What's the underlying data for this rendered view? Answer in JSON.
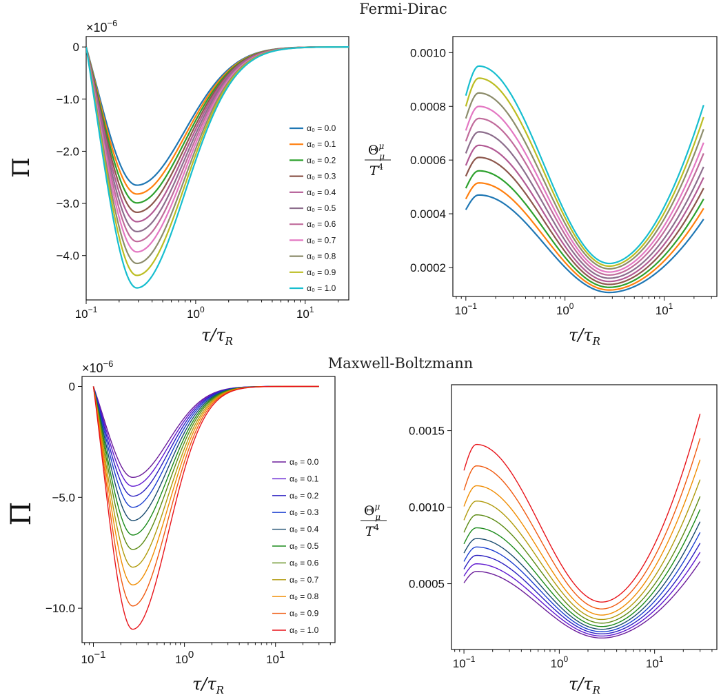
{
  "panels_titles": {
    "top": "Fermi-Dirac",
    "bottom": "Maxwell-Boltzmann"
  },
  "legend_labels": [
    "α₀ = 0.0",
    "α₀ = 0.1",
    "α₀ = 0.2",
    "α₀ = 0.3",
    "α₀ = 0.4",
    "α₀ = 0.5",
    "α₀ = 0.6",
    "α₀ = 0.7",
    "α₀ = 0.8",
    "α₀ = 0.9",
    "α₀ = 1.0"
  ],
  "xlabel": "τ/τ_R",
  "xlabel_main": "τ/τ",
  "xlabel_sub": "R",
  "multiplier_base": "×10",
  "multiplier_exp": "−6",
  "pi_label": "Π",
  "theta_num": "Θ",
  "theta_sup": "μ",
  "theta_sub": "μ",
  "theta_den": "T",
  "theta_den_sup": "4",
  "x_tick_base": "10",
  "colors": {
    "tab10": [
      "#1f77b4",
      "#ff7f0e",
      "#2ca02c",
      "#8c564b",
      "#b25a94",
      "#8c6d8c",
      "#c06b9b",
      "#e377c2",
      "#8c8c6b",
      "#bcbd22",
      "#17becf"
    ],
    "rainbow": [
      "#6a1b9a",
      "#5e17d0",
      "#2a1ec0",
      "#1a3ed0",
      "#184a6e",
      "#1a8a1a",
      "#5b8a12",
      "#b09a0a",
      "#f08c00",
      "#f05a10",
      "#e8141a"
    ]
  },
  "chart_data": [
    {
      "id": "fd-pi",
      "type": "line",
      "section": "Fermi-Dirac",
      "xscale": "log",
      "xlim": [
        0.1,
        25
      ],
      "ylim": [
        -4.85,
        0.2
      ],
      "x_ticks": [
        {
          "value": 0.1,
          "exp": "−1"
        },
        {
          "value": 1,
          "exp": "0"
        },
        {
          "value": 10,
          "exp": "1"
        }
      ],
      "y_ticks": [
        {
          "value": 0,
          "label": "0"
        },
        {
          "value": -1,
          "label": "−1.0"
        },
        {
          "value": -2,
          "label": "−2.0"
        },
        {
          "value": -3,
          "label": "−3.0"
        },
        {
          "value": -4,
          "label": "−4.0"
        }
      ],
      "multiplier": "×10⁻⁶",
      "ylabel": "Π",
      "xlabel": "τ/τ_R",
      "legend": "right-middle",
      "curve": {
        "x_start": 0.1,
        "x_min": 0.29,
        "w_left": 0.52,
        "w_right": 0.62,
        "x_end": 25
      },
      "series": [
        {
          "name": "α₀ = 0.0",
          "min_x": 0.29,
          "min_y": -2.65
        },
        {
          "name": "α₀ = 0.1",
          "min_x": 0.29,
          "min_y": -2.82
        },
        {
          "name": "α₀ = 0.2",
          "min_x": 0.29,
          "min_y": -2.99
        },
        {
          "name": "α₀ = 0.3",
          "min_x": 0.29,
          "min_y": -3.17
        },
        {
          "name": "α₀ = 0.4",
          "min_x": 0.29,
          "min_y": -3.35
        },
        {
          "name": "α₀ = 0.5",
          "min_x": 0.29,
          "min_y": -3.54
        },
        {
          "name": "α₀ = 0.6",
          "min_x": 0.29,
          "min_y": -3.73
        },
        {
          "name": "α₀ = 0.7",
          "min_x": 0.29,
          "min_y": -3.93
        },
        {
          "name": "α₀ = 0.8",
          "min_x": 0.29,
          "min_y": -4.15
        },
        {
          "name": "α₀ = 0.9",
          "min_x": 0.29,
          "min_y": -4.38
        },
        {
          "name": "α₀ = 1.0",
          "min_x": 0.29,
          "min_y": -4.62
        }
      ]
    },
    {
      "id": "fd-theta",
      "type": "line",
      "section": "Fermi-Dirac",
      "xscale": "log",
      "xlim": [
        0.074,
        34
      ],
      "ylim": [
        9.2e-05,
        0.00106
      ],
      "x_ticks": [
        {
          "value": 0.1,
          "exp": "−1"
        },
        {
          "value": 1,
          "exp": "0"
        },
        {
          "value": 10,
          "exp": "1"
        }
      ],
      "y_ticks": [
        {
          "value": 0.0002,
          "label": "0.0002"
        },
        {
          "value": 0.0004,
          "label": "0.0004"
        },
        {
          "value": 0.0006,
          "label": "0.0006"
        },
        {
          "value": 0.0008,
          "label": "0.0008"
        },
        {
          "value": 0.001,
          "label": "0.0010"
        }
      ],
      "ylabel": "Θ^μ_μ / T^4",
      "xlabel": "τ/τ_R",
      "x_range": [
        0.1,
        25
      ],
      "series": [
        {
          "name": "α₀ = 0.0",
          "start": 0.000415,
          "peak": 0.00047,
          "min": 0.000107,
          "end": 0.00038
        },
        {
          "name": "α₀ = 0.1",
          "start": 0.000455,
          "peak": 0.000515,
          "min": 0.000116,
          "end": 0.00042
        },
        {
          "name": "α₀ = 0.2",
          "start": 0.000495,
          "peak": 0.00056,
          "min": 0.000126,
          "end": 0.000455
        },
        {
          "name": "α₀ = 0.3",
          "start": 0.00054,
          "peak": 0.00061,
          "min": 0.000137,
          "end": 0.000495
        },
        {
          "name": "α₀ = 0.4",
          "start": 0.00058,
          "peak": 0.000655,
          "min": 0.000148,
          "end": 0.000535
        },
        {
          "name": "α₀ = 0.5",
          "start": 0.000625,
          "peak": 0.000705,
          "min": 0.00016,
          "end": 0.000575
        },
        {
          "name": "α₀ = 0.6",
          "start": 0.00067,
          "peak": 0.000755,
          "min": 0.000172,
          "end": 0.000625
        },
        {
          "name": "α₀ = 0.7",
          "start": 0.00071,
          "peak": 0.0008,
          "min": 0.000183,
          "end": 0.000665
        },
        {
          "name": "α₀ = 0.8",
          "start": 0.000755,
          "peak": 0.00085,
          "min": 0.000195,
          "end": 0.000715
        },
        {
          "name": "α₀ = 0.9",
          "start": 0.0008,
          "peak": 0.000905,
          "min": 0.000205,
          "end": 0.00076
        },
        {
          "name": "α₀ = 1.0",
          "start": 0.00084,
          "peak": 0.00095,
          "min": 0.000215,
          "end": 0.000805
        }
      ]
    },
    {
      "id": "mb-pi",
      "type": "line",
      "section": "Maxwell-Boltzmann",
      "xscale": "log",
      "xlim": [
        0.075,
        45
      ],
      "ylim": [
        -11.55,
        0.45
      ],
      "x_ticks": [
        {
          "value": 0.1,
          "exp": "−1"
        },
        {
          "value": 1,
          "exp": "0"
        },
        {
          "value": 10,
          "exp": "1"
        }
      ],
      "y_ticks": [
        {
          "value": 0,
          "label": "0"
        },
        {
          "value": -5,
          "label": "−5.0"
        },
        {
          "value": -10,
          "label": "−10.0"
        }
      ],
      "multiplier": "×10⁻⁶",
      "ylabel": "Π",
      "xlabel": "τ/τ_R",
      "legend": "right-bottom",
      "curve": {
        "x_start": 0.1,
        "x_min": 0.27,
        "w_left": 0.46,
        "w_right": 0.55,
        "x_end": 30
      },
      "series": [
        {
          "name": "α₀ = 0.0",
          "min_x": 0.27,
          "min_y": -4.1
        },
        {
          "name": "α₀ = 0.1",
          "min_x": 0.27,
          "min_y": -4.5
        },
        {
          "name": "α₀ = 0.2",
          "min_x": 0.27,
          "min_y": -4.95
        },
        {
          "name": "α₀ = 0.3",
          "min_x": 0.27,
          "min_y": -5.45
        },
        {
          "name": "α₀ = 0.4",
          "min_x": 0.27,
          "min_y": -6.05
        },
        {
          "name": "α₀ = 0.5",
          "min_x": 0.27,
          "min_y": -6.7
        },
        {
          "name": "α₀ = 0.6",
          "min_x": 0.27,
          "min_y": -7.35
        },
        {
          "name": "α₀ = 0.7",
          "min_x": 0.27,
          "min_y": -8.15
        },
        {
          "name": "α₀ = 0.8",
          "min_x": 0.27,
          "min_y": -8.95
        },
        {
          "name": "α₀ = 0.9",
          "min_x": 0.27,
          "min_y": -9.9
        },
        {
          "name": "α₀ = 1.0",
          "min_x": 0.27,
          "min_y": -10.95
        }
      ]
    },
    {
      "id": "mb-theta",
      "type": "line",
      "section": "Maxwell-Boltzmann",
      "xscale": "log",
      "xlim": [
        0.074,
        45
      ],
      "ylim": [
        7e-05,
        0.0018
      ],
      "x_ticks": [
        {
          "value": 0.1,
          "exp": "−1"
        },
        {
          "value": 1,
          "exp": "0"
        },
        {
          "value": 10,
          "exp": "1"
        }
      ],
      "y_ticks": [
        {
          "value": 0.0005,
          "label": "0.0005"
        },
        {
          "value": 0.001,
          "label": "0.0010"
        },
        {
          "value": 0.0015,
          "label": "0.0015"
        }
      ],
      "ylabel": "Θ^μ_μ / T^4",
      "xlabel": "τ/τ_R",
      "x_range": [
        0.1,
        30
      ],
      "series": [
        {
          "name": "α₀ = 0.0",
          "start": 0.000505,
          "peak": 0.00058,
          "min": 0.000145,
          "end": 0.000645
        },
        {
          "name": "α₀ = 0.1",
          "start": 0.00055,
          "peak": 0.00063,
          "min": 0.000158,
          "end": 0.000705
        },
        {
          "name": "α₀ = 0.2",
          "start": 0.000595,
          "peak": 0.000685,
          "min": 0.000172,
          "end": 0.000765
        },
        {
          "name": "α₀ = 0.3",
          "start": 0.000645,
          "peak": 0.00074,
          "min": 0.000186,
          "end": 0.000835
        },
        {
          "name": "α₀ = 0.4",
          "start": 0.0007,
          "peak": 0.000795,
          "min": 0.000202,
          "end": 0.000905
        },
        {
          "name": "α₀ = 0.5",
          "start": 0.00076,
          "peak": 0.000865,
          "min": 0.00022,
          "end": 0.000985
        },
        {
          "name": "α₀ = 0.6",
          "start": 0.000835,
          "peak": 0.00095,
          "min": 0.000242,
          "end": 0.00107
        },
        {
          "name": "α₀ = 0.7",
          "start": 0.000915,
          "peak": 0.00104,
          "min": 0.000266,
          "end": 0.00118
        },
        {
          "name": "α₀ = 0.8",
          "start": 0.001005,
          "peak": 0.00114,
          "min": 0.000295,
          "end": 0.00131
        },
        {
          "name": "α₀ = 0.9",
          "start": 0.00111,
          "peak": 0.00127,
          "min": 0.000335,
          "end": 0.00145
        },
        {
          "name": "α₀ = 1.0",
          "start": 0.00124,
          "peak": 0.00141,
          "min": 0.00038,
          "end": 0.00161
        }
      ]
    }
  ]
}
